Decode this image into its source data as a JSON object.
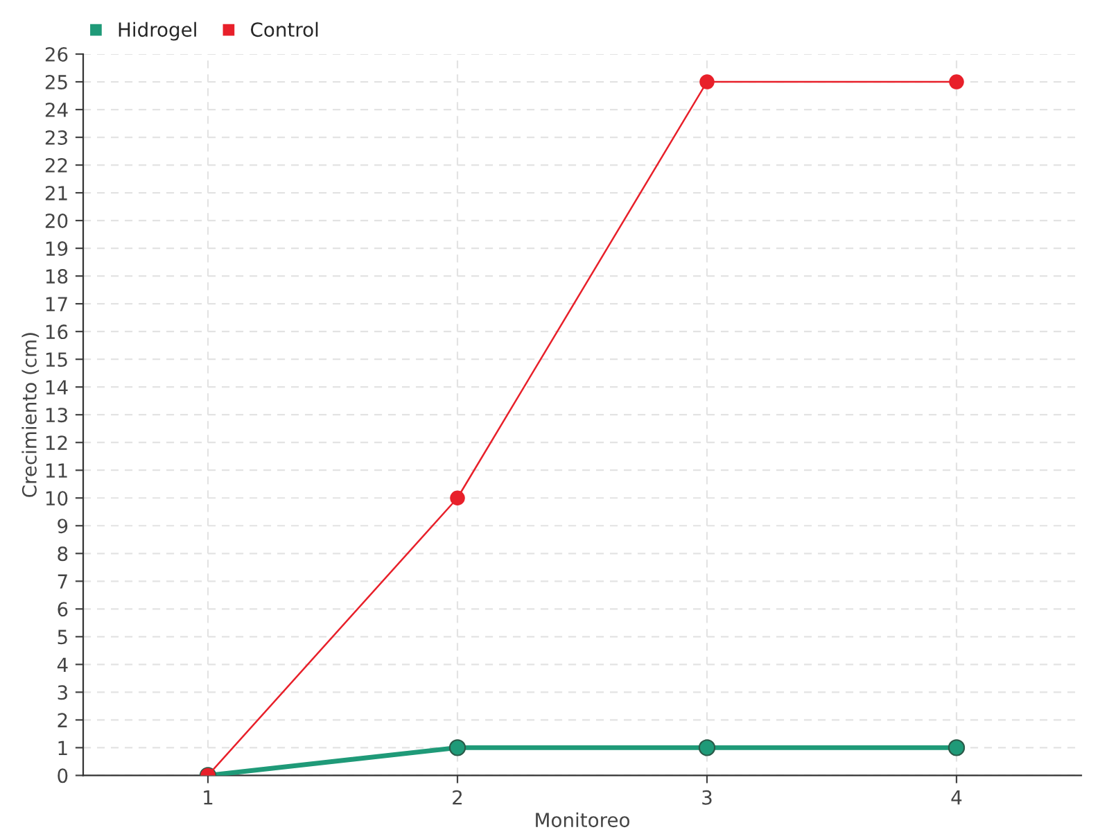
{
  "chart_data": {
    "type": "line",
    "xlabel": "Monitoreo",
    "ylabel": "Crecimiento (cm)",
    "categories": [
      "1",
      "2",
      "3",
      "4"
    ],
    "series": [
      {
        "name": "Hidrogel",
        "color": "#1f9a78",
        "values": [
          0,
          1,
          1,
          1
        ]
      },
      {
        "name": "Control",
        "color": "#e8202a",
        "values": [
          0,
          10,
          25,
          25
        ]
      }
    ],
    "ylim": [
      0,
      26
    ],
    "yticks": [
      0,
      1,
      2,
      3,
      4,
      5,
      6,
      7,
      8,
      9,
      10,
      11,
      12,
      13,
      14,
      15,
      16,
      17,
      18,
      19,
      20,
      21,
      22,
      23,
      24,
      25,
      26
    ],
    "grid": true,
    "legend": "top left",
    "marker": "circle",
    "line_style": "solid"
  }
}
